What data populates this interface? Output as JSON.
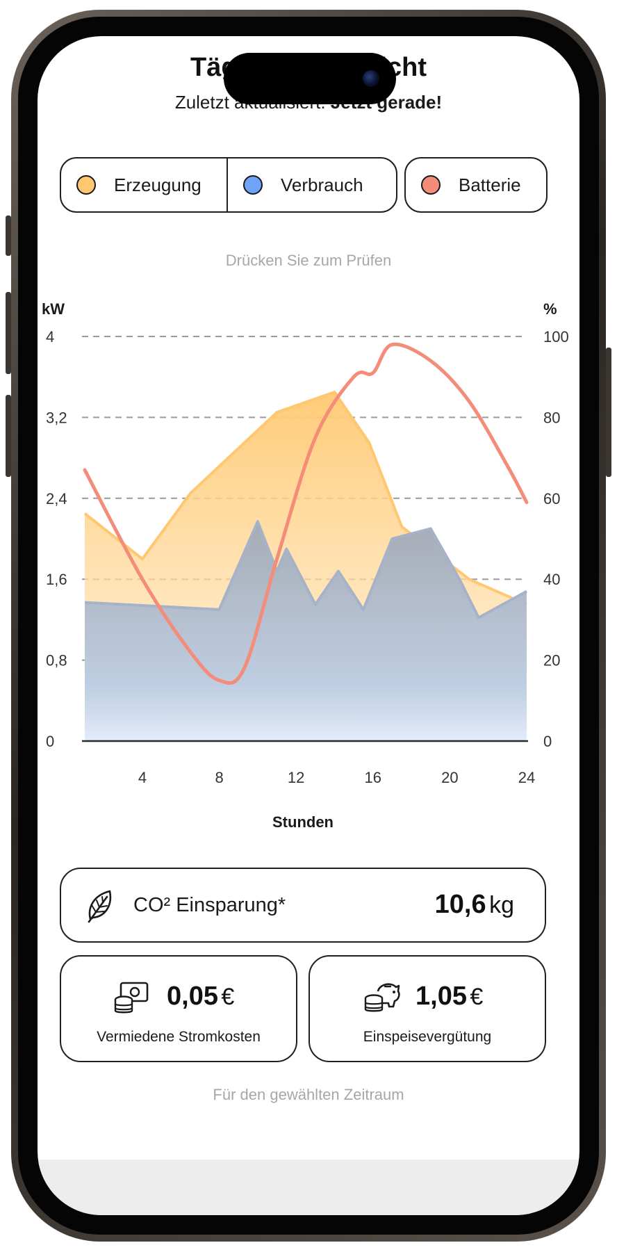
{
  "header": {
    "title": "Tägliche Übersicht",
    "subtitle_prefix": "Zuletzt aktualisiert:",
    "subtitle_bold": "Jetzt gerade!"
  },
  "legend": {
    "items": [
      {
        "label": "Erzeugung",
        "color": "#FFC870"
      },
      {
        "label": "Verbrauch",
        "color": "#6FA3F7"
      },
      {
        "label": "Batterie",
        "color": "#F48C7A"
      }
    ]
  },
  "hint": "Drücken Sie zum Prüfen",
  "chart_data": {
    "type": "area",
    "y_left": {
      "label": "kW",
      "range": [
        0,
        4
      ],
      "ticks": [
        "0",
        "0,8",
        "1,6",
        "2,4",
        "3,2",
        "4"
      ]
    },
    "y_right": {
      "label": "%",
      "range": [
        0,
        100
      ],
      "ticks": [
        "0",
        "20",
        "40",
        "60",
        "80",
        "100"
      ]
    },
    "x": {
      "label": "Stunden",
      "range": [
        1,
        24
      ],
      "ticks": [
        "4",
        "8",
        "12",
        "16",
        "20",
        "24"
      ]
    },
    "grid": "dashed horizontal",
    "series": [
      {
        "name": "Erzeugung",
        "axis": "left",
        "color": "#FFC870",
        "points": [
          [
            1,
            2.25
          ],
          [
            4,
            1.8
          ],
          [
            6.5,
            2.45
          ],
          [
            11,
            3.25
          ],
          [
            14,
            3.45
          ],
          [
            15.8,
            2.95
          ],
          [
            17.5,
            2.12
          ],
          [
            21,
            1.6
          ],
          [
            24,
            1.35
          ]
        ]
      },
      {
        "name": "Verbrauch",
        "axis": "left",
        "color": "#6FA3F7",
        "points": [
          [
            1,
            1.37
          ],
          [
            8,
            1.3
          ],
          [
            10,
            2.17
          ],
          [
            11,
            1.68
          ],
          [
            11.5,
            1.9
          ],
          [
            13,
            1.35
          ],
          [
            14.2,
            1.68
          ],
          [
            15.5,
            1.3
          ],
          [
            17,
            2.0
          ],
          [
            19,
            2.1
          ],
          [
            20.5,
            1.6
          ],
          [
            21.5,
            1.22
          ],
          [
            24,
            1.48
          ]
        ]
      },
      {
        "name": "Batterie",
        "axis": "right",
        "color": "#F48C7A",
        "points": [
          [
            1,
            67
          ],
          [
            4,
            40
          ],
          [
            6.5,
            22
          ],
          [
            8,
            15
          ],
          [
            9.3,
            18
          ],
          [
            11,
            45
          ],
          [
            13,
            75
          ],
          [
            15,
            90
          ],
          [
            16,
            91
          ],
          [
            17,
            98
          ],
          [
            19,
            94
          ],
          [
            21,
            84
          ],
          [
            23,
            68
          ],
          [
            24,
            59
          ]
        ]
      }
    ]
  },
  "stats": {
    "co2_label": "CO² Einsparung*",
    "co2_value": "10,6",
    "co2_unit": "kg",
    "avoided_value": "0,05",
    "avoided_unit": "€",
    "avoided_label": "Vermiedene Stromkosten",
    "feedin_value": "1,05",
    "feedin_unit": "€",
    "feedin_label": "Einspeisevergütung"
  },
  "footer_note": "Für den gewählten Zeitraum"
}
